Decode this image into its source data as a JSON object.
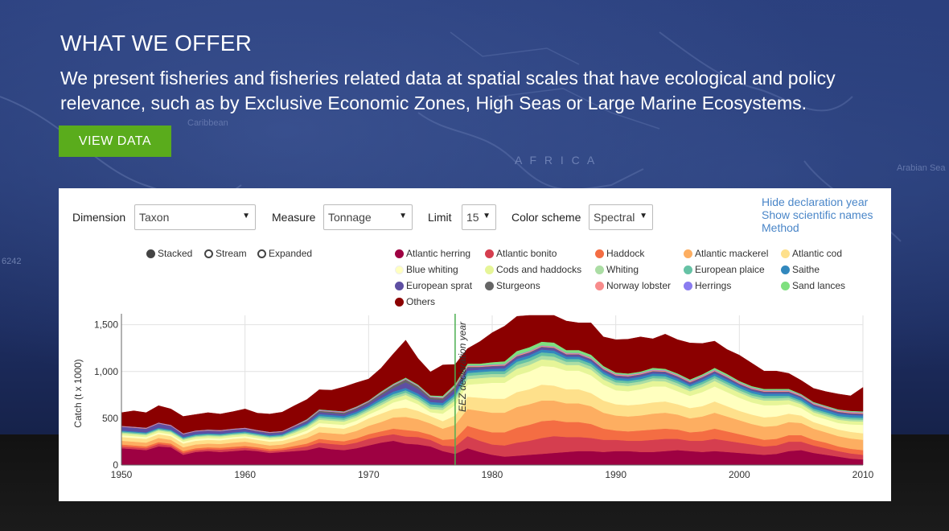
{
  "hero": {
    "title": "WHAT WE OFFER",
    "description": "We present fisheries and fisheries related data at spatial scales that have ecological and policy relevance, such as by Exclusive Economic Zones, High Seas or Large Marine Ecosystems.",
    "button_label": "VIEW DATA"
  },
  "background_map_labels": [
    "A F R I C A",
    "Arabian Sea",
    "Caribbean",
    "6242"
  ],
  "controls": {
    "dimension": {
      "label": "Dimension",
      "value": "Taxon"
    },
    "measure": {
      "label": "Measure",
      "value": "Tonnage"
    },
    "limit": {
      "label": "Limit",
      "value": "15"
    },
    "color_scheme": {
      "label": "Color scheme",
      "value": "Spectral"
    }
  },
  "links": {
    "hide_declaration": "Hide declaration year",
    "show_scientific": "Show scientific names",
    "method": "Method"
  },
  "view_modes": {
    "selected": "Stacked",
    "items": [
      "Stacked",
      "Stream",
      "Expanded"
    ]
  },
  "colors": {
    "accent_button": "#5aac1c",
    "link": "#4a86c8",
    "declaration_line": "#4caf50"
  },
  "chart_data": {
    "type": "area",
    "stacked": true,
    "ylabel": "Catch (t x 1000)",
    "xlabel": "",
    "y_ticks": [
      "0",
      "500",
      "1,000",
      "1,500"
    ],
    "x_ticks": [
      "1950",
      "1960",
      "1970",
      "1980",
      "1990",
      "2000",
      "2010"
    ],
    "xlim": [
      1950,
      2010
    ],
    "ylim": [
      0,
      1600
    ],
    "annotation": {
      "x": 1977,
      "label": "EEZ declaration year"
    },
    "x": [
      1950,
      1951,
      1952,
      1953,
      1954,
      1955,
      1956,
      1957,
      1958,
      1959,
      1960,
      1961,
      1962,
      1963,
      1964,
      1965,
      1966,
      1967,
      1968,
      1969,
      1970,
      1971,
      1972,
      1973,
      1974,
      1975,
      1976,
      1977,
      1978,
      1979,
      1980,
      1981,
      1982,
      1983,
      1984,
      1985,
      1986,
      1987,
      1988,
      1989,
      1990,
      1991,
      1992,
      1993,
      1994,
      1995,
      1996,
      1997,
      1998,
      1999,
      2000,
      2001,
      2002,
      2003,
      2004,
      2005,
      2006,
      2007,
      2008,
      2009,
      2010
    ],
    "series": [
      {
        "name": "Atlantic herring",
        "color": "#9e0142",
        "values": [
          180,
          170,
          160,
          200,
          190,
          110,
          140,
          150,
          140,
          150,
          160,
          150,
          130,
          140,
          150,
          160,
          190,
          170,
          160,
          180,
          210,
          240,
          260,
          230,
          220,
          200,
          150,
          120,
          180,
          140,
          110,
          90,
          100,
          110,
          120,
          130,
          140,
          150,
          150,
          140,
          150,
          150,
          140,
          140,
          150,
          160,
          150,
          140,
          150,
          140,
          130,
          120,
          110,
          120,
          150,
          160,
          130,
          110,
          90,
          70,
          60
        ]
      },
      {
        "name": "Atlantic bonito",
        "color": "#d53e4f",
        "values": [
          20,
          20,
          20,
          25,
          20,
          20,
          20,
          20,
          25,
          25,
          25,
          20,
          20,
          20,
          30,
          40,
          50,
          55,
          55,
          60,
          70,
          70,
          70,
          75,
          80,
          70,
          60,
          80,
          130,
          120,
          110,
          120,
          140,
          150,
          170,
          180,
          160,
          150,
          140,
          130,
          120,
          110,
          120,
          130,
          130,
          120,
          110,
          120,
          130,
          120,
          110,
          100,
          90,
          90,
          100,
          90,
          80,
          70,
          60,
          55,
          50
        ]
      },
      {
        "name": "Haddock",
        "color": "#f46d43",
        "values": [
          20,
          20,
          20,
          20,
          20,
          20,
          20,
          20,
          20,
          20,
          20,
          20,
          20,
          20,
          25,
          30,
          40,
          40,
          40,
          45,
          50,
          50,
          60,
          70,
          60,
          55,
          60,
          80,
          110,
          120,
          130,
          140,
          160,
          170,
          180,
          170,
          160,
          160,
          150,
          120,
          100,
          100,
          110,
          110,
          110,
          100,
          90,
          100,
          110,
          100,
          90,
          80,
          70,
          70,
          70,
          70,
          60,
          60,
          50,
          50,
          50
        ]
      },
      {
        "name": "Atlantic mackerel",
        "color": "#fdae61",
        "values": [
          40,
          40,
          40,
          45,
          40,
          40,
          40,
          40,
          40,
          45,
          45,
          40,
          40,
          40,
          50,
          60,
          70,
          75,
          75,
          80,
          90,
          100,
          120,
          140,
          130,
          120,
          120,
          150,
          180,
          200,
          210,
          210,
          220,
          220,
          220,
          210,
          200,
          200,
          190,
          170,
          160,
          160,
          160,
          170,
          170,
          160,
          150,
          160,
          170,
          160,
          150,
          140,
          140,
          140,
          140,
          130,
          120,
          110,
          110,
          110,
          110
        ]
      },
      {
        "name": "Atlantic cod",
        "color": "#fee08b",
        "values": [
          40,
          40,
          40,
          40,
          40,
          40,
          40,
          40,
          40,
          40,
          40,
          40,
          40,
          40,
          40,
          50,
          60,
          60,
          60,
          70,
          80,
          90,
          90,
          100,
          90,
          80,
          80,
          100,
          130,
          140,
          150,
          150,
          160,
          160,
          170,
          160,
          150,
          150,
          140,
          130,
          120,
          120,
          120,
          120,
          120,
          110,
          110,
          110,
          120,
          110,
          100,
          100,
          100,
          100,
          90,
          80,
          70,
          70,
          70,
          70,
          70
        ]
      },
      {
        "name": "Blue whiting",
        "color": "#ffffbf",
        "values": [
          20,
          20,
          20,
          20,
          20,
          20,
          20,
          20,
          20,
          20,
          20,
          20,
          20,
          20,
          25,
          30,
          40,
          40,
          40,
          40,
          40,
          50,
          70,
          90,
          70,
          40,
          80,
          110,
          130,
          150,
          170,
          170,
          180,
          190,
          200,
          200,
          200,
          200,
          190,
          170,
          150,
          150,
          160,
          170,
          160,
          140,
          130,
          150,
          160,
          150,
          140,
          130,
          130,
          120,
          100,
          80,
          70,
          70,
          70,
          80,
          90
        ]
      },
      {
        "name": "Cods and haddocks",
        "color": "#e6f598",
        "values": [
          20,
          20,
          20,
          20,
          20,
          20,
          20,
          20,
          20,
          20,
          20,
          20,
          20,
          20,
          25,
          30,
          35,
          35,
          35,
          35,
          35,
          40,
          40,
          45,
          40,
          35,
          40,
          50,
          60,
          60,
          60,
          60,
          70,
          70,
          70,
          70,
          60,
          60,
          60,
          55,
          55,
          55,
          55,
          60,
          55,
          55,
          50,
          55,
          60,
          55,
          55,
          50,
          50,
          50,
          45,
          40,
          35,
          35,
          35,
          35,
          35
        ]
      },
      {
        "name": "Whiting",
        "color": "#abdda4",
        "values": [
          10,
          10,
          10,
          10,
          10,
          10,
          10,
          10,
          10,
          10,
          10,
          10,
          10,
          10,
          15,
          15,
          20,
          20,
          20,
          20,
          20,
          25,
          25,
          25,
          25,
          25,
          25,
          30,
          35,
          35,
          35,
          35,
          40,
          40,
          40,
          40,
          35,
          35,
          35,
          30,
          30,
          30,
          30,
          30,
          30,
          30,
          25,
          30,
          30,
          30,
          25,
          25,
          25,
          25,
          25,
          20,
          20,
          20,
          20,
          20,
          20
        ]
      },
      {
        "name": "European plaice",
        "color": "#66c2a5",
        "values": [
          10,
          10,
          10,
          10,
          10,
          10,
          10,
          10,
          10,
          10,
          10,
          10,
          10,
          10,
          15,
          15,
          20,
          20,
          20,
          20,
          20,
          25,
          25,
          25,
          25,
          25,
          25,
          25,
          30,
          30,
          30,
          30,
          35,
          35,
          35,
          35,
          30,
          30,
          30,
          30,
          25,
          25,
          25,
          25,
          25,
          25,
          25,
          25,
          25,
          25,
          25,
          25,
          25,
          25,
          20,
          20,
          20,
          20,
          20,
          20,
          20
        ]
      },
      {
        "name": "Saithe",
        "color": "#3288bd",
        "values": [
          10,
          10,
          10,
          10,
          10,
          10,
          10,
          10,
          10,
          10,
          10,
          10,
          10,
          10,
          15,
          15,
          20,
          20,
          20,
          20,
          20,
          25,
          25,
          25,
          25,
          25,
          25,
          25,
          25,
          25,
          25,
          30,
          30,
          30,
          30,
          30,
          25,
          25,
          25,
          25,
          25,
          25,
          25,
          25,
          25,
          25,
          20,
          25,
          25,
          25,
          25,
          25,
          25,
          25,
          25,
          25,
          25,
          25,
          25,
          25,
          25
        ]
      },
      {
        "name": "European sprat",
        "color": "#5e4fa2",
        "values": [
          40,
          40,
          40,
          45,
          40,
          30,
          30,
          30,
          30,
          30,
          30,
          20,
          20,
          20,
          20,
          20,
          20,
          20,
          20,
          25,
          25,
          30,
          40,
          60,
          50,
          30,
          30,
          40,
          30,
          25,
          25,
          25,
          25,
          25,
          25,
          25,
          20,
          20,
          20,
          20,
          20,
          20,
          20,
          20,
          20,
          20,
          20,
          20,
          20,
          20,
          15,
          15,
          15,
          15,
          15,
          15,
          15,
          15,
          15,
          15,
          15
        ]
      },
      {
        "name": "Sturgeons",
        "color": "#666666",
        "values": [
          0,
          0,
          0,
          0,
          0,
          0,
          0,
          0,
          0,
          0,
          0,
          5,
          5,
          5,
          5,
          10,
          15,
          15,
          15,
          15,
          15,
          20,
          25,
          30,
          25,
          20,
          20,
          25,
          10,
          5,
          5,
          5,
          5,
          5,
          5,
          5,
          5,
          5,
          5,
          5,
          5,
          5,
          5,
          5,
          5,
          5,
          5,
          5,
          5,
          5,
          5,
          5,
          5,
          5,
          5,
          5,
          5,
          5,
          5,
          5,
          5
        ]
      },
      {
        "name": "Norway lobster",
        "color": "#f88c8c",
        "values": [
          5,
          5,
          5,
          5,
          5,
          5,
          5,
          5,
          5,
          5,
          5,
          5,
          5,
          5,
          5,
          5,
          5,
          5,
          5,
          5,
          5,
          5,
          5,
          5,
          5,
          5,
          5,
          10,
          10,
          10,
          10,
          10,
          10,
          10,
          10,
          10,
          10,
          10,
          10,
          10,
          10,
          10,
          10,
          10,
          10,
          10,
          10,
          10,
          10,
          10,
          10,
          10,
          10,
          10,
          10,
          10,
          10,
          10,
          10,
          10,
          10
        ]
      },
      {
        "name": "Herrings",
        "color": "#8a7cf0",
        "values": [
          5,
          5,
          5,
          5,
          5,
          5,
          5,
          5,
          5,
          5,
          5,
          5,
          5,
          5,
          5,
          5,
          5,
          5,
          5,
          5,
          5,
          5,
          5,
          5,
          5,
          5,
          5,
          5,
          5,
          5,
          5,
          5,
          5,
          5,
          5,
          5,
          5,
          5,
          5,
          5,
          5,
          5,
          5,
          5,
          5,
          5,
          5,
          5,
          5,
          5,
          5,
          5,
          5,
          5,
          5,
          5,
          5,
          5,
          5,
          5,
          5
        ]
      },
      {
        "name": "Sand lances",
        "color": "#7fe07f",
        "values": [
          0,
          0,
          0,
          0,
          0,
          0,
          0,
          0,
          0,
          0,
          0,
          0,
          0,
          0,
          0,
          5,
          5,
          5,
          5,
          5,
          5,
          10,
          10,
          10,
          10,
          10,
          15,
          15,
          20,
          20,
          25,
          30,
          40,
          40,
          40,
          40,
          30,
          30,
          30,
          20,
          15,
          15,
          15,
          20,
          15,
          15,
          15,
          15,
          20,
          20,
          15,
          15,
          15,
          15,
          15,
          10,
          10,
          10,
          10,
          10,
          10
        ]
      },
      {
        "name": "Others",
        "color": "#8b0000",
        "values": [
          140,
          170,
          160,
          180,
          170,
          180,
          170,
          180,
          170,
          180,
          200,
          180,
          190,
          200,
          210,
          210,
          210,
          215,
          260,
          255,
          230,
          250,
          320,
          400,
          280,
          250,
          330,
          210,
          160,
          235,
          315,
          375,
          370,
          355,
          330,
          360,
          310,
          290,
          340,
          310,
          350,
          365,
          370,
          310,
          370,
          360,
          390,
          330,
          285,
          260,
          275,
          245,
          190,
          190,
          165,
          145,
          145,
          150,
          165,
          160,
          255
        ]
      }
    ]
  }
}
